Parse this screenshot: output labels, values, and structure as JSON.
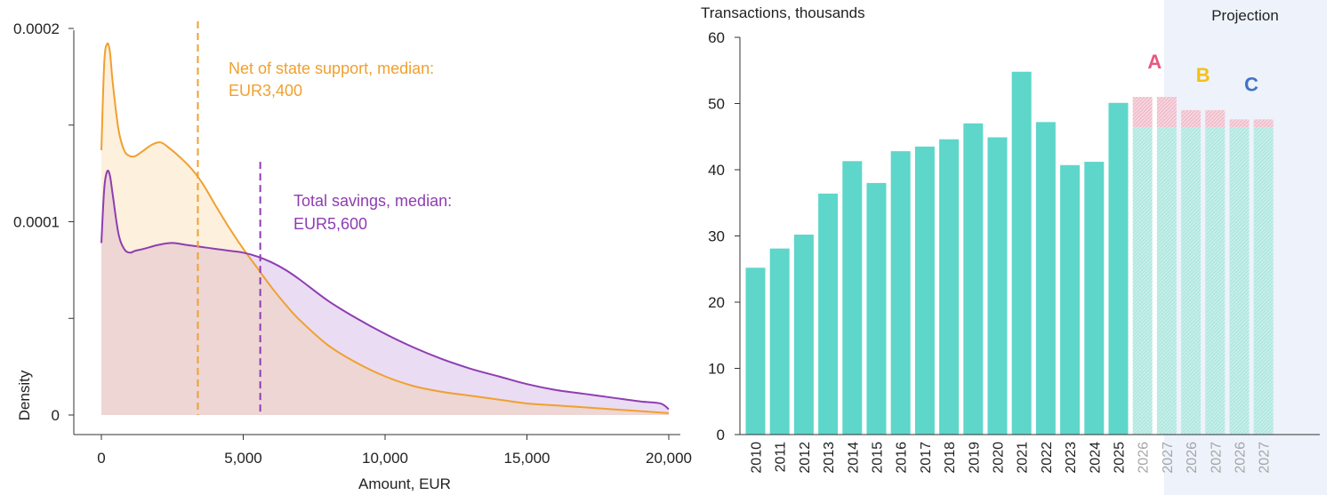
{
  "chart_data": [
    {
      "type": "area",
      "title": "",
      "xlabel": "Amount, EUR",
      "ylabel": "Density",
      "xlim": [
        0,
        20000
      ],
      "ylim": [
        0,
        0.0002
      ],
      "x_ticks": [
        0,
        5000,
        10000,
        15000,
        20000
      ],
      "x_tick_labels": [
        "0",
        "5,000",
        "10,000",
        "15,000",
        "20,000"
      ],
      "y_ticks": [
        0,
        0.0001,
        0.0002
      ],
      "y_tick_labels": [
        "0",
        "0.0001",
        "0.0002"
      ],
      "y_minor_ticks": [
        5e-05,
        0.00015
      ],
      "grid": false,
      "colors": {
        "net": "#f0a030",
        "net_fill": "#fdf0dc",
        "total": "#8e3db2",
        "total_fill": "#eadcf3",
        "overlap_fill": "#edd6d3"
      },
      "series": [
        {
          "key": "net",
          "x": [
            0,
            100,
            200,
            300,
            400,
            600,
            800,
            1000,
            1200,
            1500,
            1800,
            2100,
            2400,
            2800,
            3200,
            3600,
            4000,
            4500,
            5000,
            5500,
            6000,
            6500,
            7000,
            8000,
            9000,
            10000,
            11000,
            12000,
            13000,
            14000,
            15000,
            16000,
            17000,
            18000,
            19000,
            20000
          ],
          "y": [
            0.000137,
            0.000182,
            0.000192,
            0.000188,
            0.000172,
            0.000148,
            0.000137,
            0.000134,
            0.000134,
            0.000137,
            0.00014,
            0.000141,
            0.000138,
            0.000133,
            0.000127,
            0.000119,
            0.000109,
            9.7e-05,
            8.6e-05,
            7.6e-05,
            6.6e-05,
            5.7e-05,
            4.9e-05,
            3.6e-05,
            2.7e-05,
            2e-05,
            1.5e-05,
            1.2e-05,
            1e-05,
            8e-06,
            6e-06,
            5e-06,
            4e-06,
            3e-06,
            2e-06,
            1e-06
          ]
        },
        {
          "key": "total",
          "x": [
            0,
            100,
            200,
            300,
            400,
            600,
            800,
            1000,
            1200,
            1500,
            2000,
            2500,
            3000,
            3500,
            4000,
            4500,
            5000,
            5500,
            6000,
            6500,
            7000,
            8000,
            9000,
            10000,
            11000,
            12000,
            13000,
            14000,
            15000,
            16000,
            17000,
            18000,
            19000,
            19700,
            20000
          ],
          "y": [
            8.9e-05,
            0.000117,
            0.000126,
            0.000124,
            0.000114,
            9.4e-05,
            8.6e-05,
            8.4e-05,
            8.5e-05,
            8.6e-05,
            8.8e-05,
            8.9e-05,
            8.8e-05,
            8.7e-05,
            8.6e-05,
            8.5e-05,
            8.4e-05,
            8.2e-05,
            7.9e-05,
            7.5e-05,
            7e-05,
            5.9e-05,
            5e-05,
            4.2e-05,
            3.5e-05,
            2.9e-05,
            2.4e-05,
            2e-05,
            1.6e-05,
            1.3e-05,
            1.1e-05,
            9e-06,
            7e-06,
            6e-06,
            3e-06
          ]
        }
      ],
      "medians": [
        {
          "key": "net",
          "x": 3400,
          "y_top": 0.0002,
          "label_1": "Net of state support, median:",
          "label_2": "EUR3,400"
        },
        {
          "key": "total",
          "x": 5600,
          "y_top": 0.000131,
          "label_1": "Total savings, median:",
          "label_2": "EUR5,600"
        }
      ]
    },
    {
      "type": "bar",
      "title": "",
      "ylabel": "Transactions, thousands",
      "ylim": [
        0,
        60
      ],
      "y_ticks": [
        0,
        10,
        20,
        30,
        40,
        50,
        60
      ],
      "grid": false,
      "colors": {
        "bar": "#5ed6ca",
        "projection_base": "#c6eee9",
        "projection_top": "#f3cdd9",
        "projection_bg": "#edf2fb",
        "label_a": "#e8577c",
        "label_b": "#f5bf18",
        "label_c": "#4472c4",
        "projection_tick": "#a6a6a6"
      },
      "categories": [
        "2010",
        "2011",
        "2012",
        "2013",
        "2014",
        "2015",
        "2016",
        "2017",
        "2018",
        "2019",
        "2020",
        "2021",
        "2022",
        "2023",
        "2024",
        "2025"
      ],
      "values": [
        25.2,
        28.1,
        30.2,
        36.4,
        41.3,
        38.0,
        42.8,
        43.5,
        44.6,
        47.0,
        44.9,
        54.8,
        47.2,
        40.7,
        41.2,
        50.1
      ],
      "projection": {
        "label": "Projection",
        "categories": [
          "2026",
          "2027",
          "2026",
          "2027",
          "2026",
          "2027"
        ],
        "base": [
          46.4,
          46.4,
          46.4,
          46.4,
          46.4,
          46.4
        ],
        "totals": [
          51.0,
          51.0,
          49.0,
          49.0,
          47.6,
          47.6
        ],
        "scenarios": [
          {
            "label": "A",
            "value": 51.0,
            "color_key": "label_a"
          },
          {
            "label": "B",
            "value": 49.0,
            "color_key": "label_b"
          },
          {
            "label": "C",
            "value": 47.6,
            "color_key": "label_c"
          }
        ]
      }
    }
  ]
}
